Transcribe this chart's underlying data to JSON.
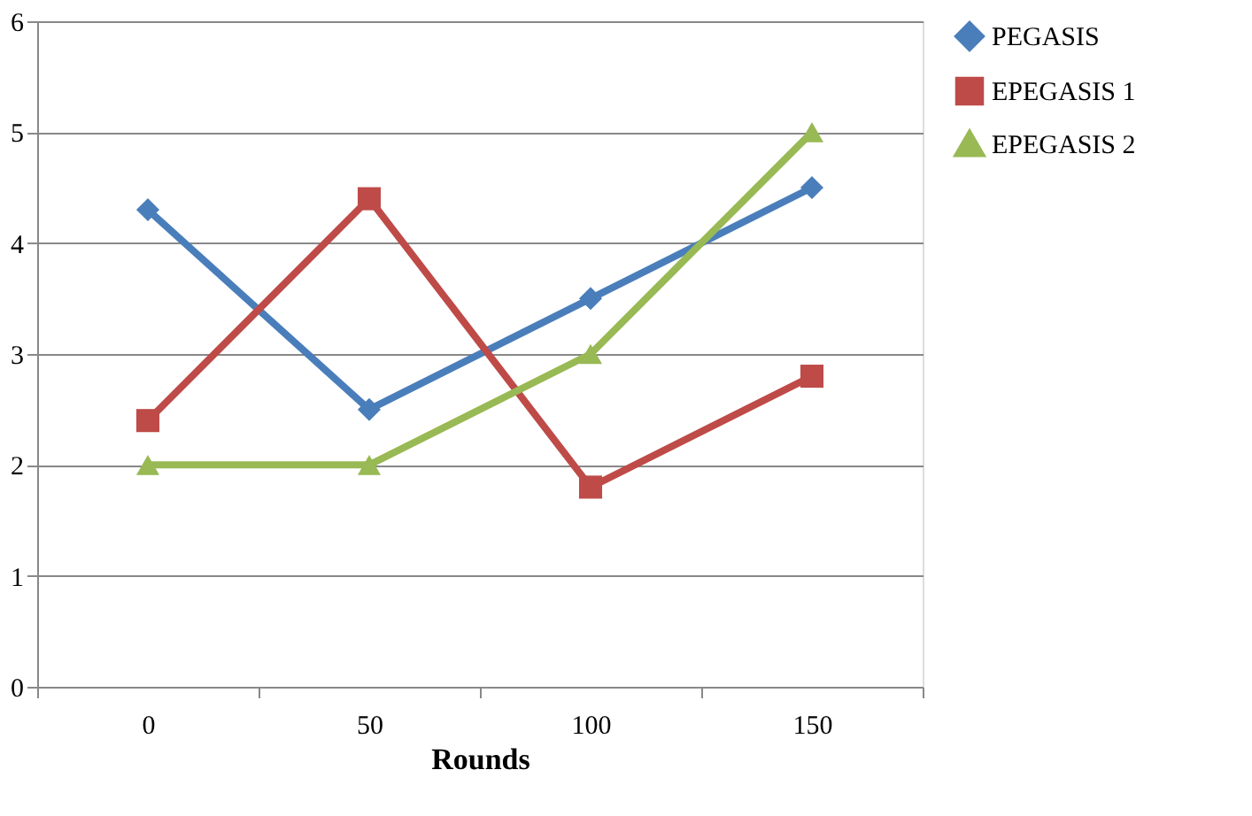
{
  "chart_data": {
    "type": "line",
    "xlabel": "Rounds",
    "categories": [
      "0",
      "50",
      "100",
      "150"
    ],
    "series": [
      {
        "name": "PEGASIS",
        "color": "#4a7ebb",
        "marker": "diamond",
        "values": [
          4.3,
          2.5,
          3.5,
          4.5
        ]
      },
      {
        "name": "EPEGASIS 1",
        "color": "#be4b48",
        "marker": "square",
        "values": [
          2.4,
          4.4,
          1.8,
          2.8
        ]
      },
      {
        "name": "EPEGASIS 2",
        "color": "#98b954",
        "marker": "triangle",
        "values": [
          2,
          2,
          3,
          5
        ]
      }
    ],
    "ylim": [
      0,
      6
    ],
    "yticks": [
      0,
      1,
      2,
      3,
      4,
      5,
      6
    ],
    "grid": "y",
    "legend": "right",
    "line_style": "solid"
  }
}
